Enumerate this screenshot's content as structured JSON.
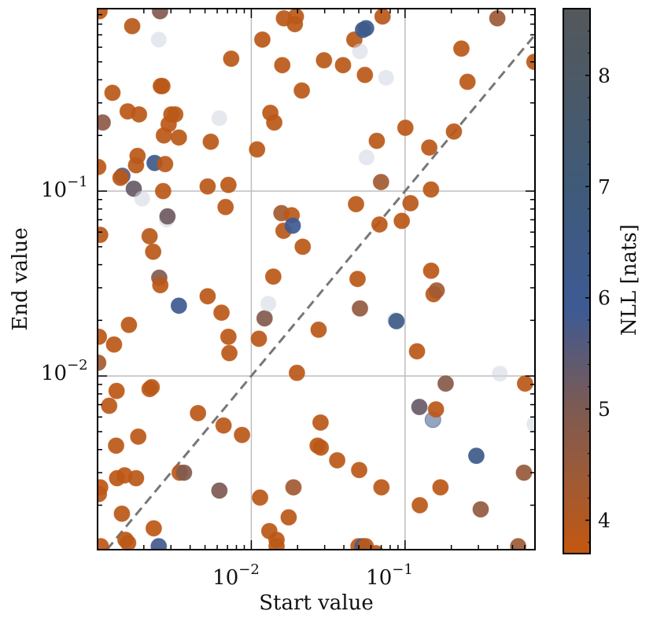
{
  "chart_data": {
    "type": "scatter",
    "xlabel": "Start value",
    "ylabel": "End value",
    "xscale": "log",
    "yscale": "log",
    "xlim": [
      0.001,
      0.7
    ],
    "ylim": [
      0.00115,
      0.97
    ],
    "x_ticks": [
      {
        "value": 0.01,
        "base": "10",
        "exp": "−2"
      },
      {
        "value": 0.1,
        "base": "10",
        "exp": "−1"
      }
    ],
    "y_ticks": [
      {
        "value": 0.01,
        "base": "10",
        "exp": "−2"
      },
      {
        "value": 0.1,
        "base": "10",
        "exp": "−1"
      }
    ],
    "grid": true,
    "reference_line": {
      "label": "y = x",
      "style": "dashed",
      "color": "#777777"
    },
    "colorbar": {
      "label": "NLL [nats]",
      "range": [
        3.7,
        8.6
      ],
      "ticks": [
        4,
        5,
        6,
        7,
        8
      ],
      "colors": [
        {
          "value": 3.7,
          "color": "#c4570f"
        },
        {
          "value": 4.4,
          "color": "#9c5a37"
        },
        {
          "value": 5.0,
          "color": "#7d5a52"
        },
        {
          "value": 5.9,
          "color": "#3d5a94"
        },
        {
          "value": 7.0,
          "color": "#3f5a78"
        },
        {
          "value": 8.6,
          "color": "#54585a"
        }
      ]
    },
    "faint_color": "#cfd6e0",
    "points": [
      {
        "x": 0.00103,
        "y": 0.94,
        "nll": 3.85
      },
      {
        "x": 0.00105,
        "y": 0.0012,
        "nll": 3.8
      },
      {
        "x": 0.00101,
        "y": 0.135,
        "nll": 3.85
      },
      {
        "x": 0.00104,
        "y": 0.058,
        "nll": 3.9
      },
      {
        "x": 0.00102,
        "y": 0.0163,
        "nll": 3.85
      },
      {
        "x": 0.00101,
        "y": 0.0118,
        "nll": 4.3
      },
      {
        "x": 0.00102,
        "y": 0.0023,
        "nll": 3.85
      },
      {
        "x": 0.00104,
        "y": 0.0025,
        "nll": 3.8
      },
      {
        "x": 0.00108,
        "y": 0.235,
        "nll": 4.7
      },
      {
        "x": 0.00125,
        "y": 0.34,
        "nll": 3.85
      },
      {
        "x": 0.00128,
        "y": 0.0148,
        "nll": 3.85
      },
      {
        "x": 0.00133,
        "y": 0.0083,
        "nll": 3.8
      },
      {
        "x": 0.00132,
        "y": 0.0042,
        "nll": 3.85
      },
      {
        "x": 0.00134,
        "y": 0.0028,
        "nll": 3.8
      },
      {
        "x": 0.00119,
        "y": 0.0069,
        "nll": 3.85
      },
      {
        "x": 0.00145,
        "y": 0.121,
        "nll": 5.5
      },
      {
        "x": 0.00141,
        "y": 0.118,
        "nll": 3.85
      },
      {
        "x": 0.0015,
        "y": 0.0029,
        "nll": 3.8
      },
      {
        "x": 0.00144,
        "y": 0.0018,
        "nll": 3.85
      },
      {
        "x": 0.00152,
        "y": 0.0013,
        "nll": 3.85
      },
      {
        "x": 0.00157,
        "y": 0.27,
        "nll": 3.85
      },
      {
        "x": 0.0016,
        "y": 0.0189,
        "nll": 3.85
      },
      {
        "x": 0.00158,
        "y": 0.00125,
        "nll": 3.85
      },
      {
        "x": 0.00168,
        "y": 0.78,
        "nll": 3.9
      },
      {
        "x": 0.00172,
        "y": 0.103,
        "nll": 5.3
      },
      {
        "x": 0.00178,
        "y": 0.138,
        "nll": 3.9
      },
      {
        "x": 0.00182,
        "y": 0.155,
        "nll": 3.85
      },
      {
        "x": 0.00184,
        "y": 0.0047,
        "nll": 3.85
      },
      {
        "x": 0.00178,
        "y": 0.0028,
        "nll": 3.85
      },
      {
        "x": 0.00186,
        "y": 0.26,
        "nll": 3.85
      },
      {
        "x": 0.00195,
        "y": 0.091,
        "faint": true
      },
      {
        "x": 0.00218,
        "y": 0.057,
        "nll": 3.9
      },
      {
        "x": 0.00218,
        "y": 0.0085,
        "nll": 3.85
      },
      {
        "x": 0.00225,
        "y": 0.0087,
        "nll": 3.85
      },
      {
        "x": 0.0023,
        "y": 0.047,
        "nll": 3.85
      },
      {
        "x": 0.00232,
        "y": 0.0015,
        "nll": 3.8
      },
      {
        "x": 0.00235,
        "y": 0.142,
        "nll": 6.3
      },
      {
        "x": 0.0025,
        "y": 0.66,
        "faint": true
      },
      {
        "x": 0.0025,
        "y": 0.0012,
        "nll": 5.8
      },
      {
        "x": 0.00252,
        "y": 0.034,
        "nll": 4.9
      },
      {
        "x": 0.00256,
        "y": 0.031,
        "nll": 3.85
      },
      {
        "x": 0.00255,
        "y": 0.94,
        "nll": 4.9
      },
      {
        "x": 0.00258,
        "y": 0.37,
        "nll": 3.85
      },
      {
        "x": 0.00264,
        "y": 0.37,
        "nll": 3.85
      },
      {
        "x": 0.00267,
        "y": 0.1,
        "nll": 3.85
      },
      {
        "x": 0.0027,
        "y": 0.2,
        "nll": 3.85
      },
      {
        "x": 0.00275,
        "y": 0.14,
        "nll": 3.85
      },
      {
        "x": 0.00282,
        "y": 0.07,
        "faint": true
      },
      {
        "x": 0.00285,
        "y": 0.073,
        "nll": 5.2
      },
      {
        "x": 0.0029,
        "y": 0.23,
        "nll": 3.85
      },
      {
        "x": 0.00302,
        "y": 0.26,
        "nll": 3.85
      },
      {
        "x": 0.0032,
        "y": 0.26,
        "nll": 3.85
      },
      {
        "x": 0.00338,
        "y": 0.024,
        "nll": 6.0
      },
      {
        "x": 0.00338,
        "y": 0.195,
        "nll": 3.85
      },
      {
        "x": 0.00342,
        "y": 0.003,
        "nll": 3.85
      },
      {
        "x": 0.00365,
        "y": 0.003,
        "nll": 4.9
      },
      {
        "x": 0.0045,
        "y": 0.0063,
        "nll": 3.85
      },
      {
        "x": 0.0052,
        "y": 0.106,
        "nll": 3.85
      },
      {
        "x": 0.0052,
        "y": 0.027,
        "nll": 3.85
      },
      {
        "x": 0.00545,
        "y": 0.185,
        "nll": 3.85
      },
      {
        "x": 0.0062,
        "y": 0.248,
        "faint": true
      },
      {
        "x": 0.0062,
        "y": 0.0024,
        "nll": 5.0
      },
      {
        "x": 0.0064,
        "y": 0.022,
        "nll": 3.85
      },
      {
        "x": 0.0066,
        "y": 0.0054,
        "nll": 3.85
      },
      {
        "x": 0.0068,
        "y": 0.082,
        "nll": 3.85
      },
      {
        "x": 0.0071,
        "y": 0.0163,
        "nll": 3.85
      },
      {
        "x": 0.0072,
        "y": 0.0133,
        "nll": 3.85
      },
      {
        "x": 0.0071,
        "y": 0.108,
        "nll": 3.85
      },
      {
        "x": 0.0074,
        "y": 0.52,
        "nll": 3.85
      },
      {
        "x": 0.0087,
        "y": 0.0048,
        "nll": 3.85
      },
      {
        "x": 0.0109,
        "y": 0.168,
        "nll": 3.85
      },
      {
        "x": 0.0112,
        "y": 0.0159,
        "nll": 3.85
      },
      {
        "x": 0.0114,
        "y": 0.0022,
        "nll": 3.85
      },
      {
        "x": 0.0118,
        "y": 0.66,
        "nll": 3.85
      },
      {
        "x": 0.0122,
        "y": 0.0205,
        "nll": 4.9
      },
      {
        "x": 0.0129,
        "y": 0.0246,
        "faint": true
      },
      {
        "x": 0.0131,
        "y": 0.00145,
        "nll": 3.85
      },
      {
        "x": 0.0133,
        "y": 0.265,
        "nll": 3.85
      },
      {
        "x": 0.0139,
        "y": 0.0345,
        "nll": 3.85
      },
      {
        "x": 0.0141,
        "y": 0.235,
        "nll": 3.85
      },
      {
        "x": 0.0146,
        "y": 0.0012,
        "nll": 3.85
      },
      {
        "x": 0.0146,
        "y": 0.0013,
        "nll": 3.85
      },
      {
        "x": 0.0157,
        "y": 0.076,
        "nll": 4.3
      },
      {
        "x": 0.0159,
        "y": 0.48,
        "nll": 3.85
      },
      {
        "x": 0.0162,
        "y": 0.061,
        "nll": 3.85
      },
      {
        "x": 0.0163,
        "y": 0.86,
        "nll": 3.85
      },
      {
        "x": 0.0175,
        "y": 0.00172,
        "nll": 3.85
      },
      {
        "x": 0.0183,
        "y": 0.074,
        "nll": 3.85
      },
      {
        "x": 0.0186,
        "y": 0.065,
        "nll": 5.9
      },
      {
        "x": 0.0188,
        "y": 0.0025,
        "nll": 4.3
      },
      {
        "x": 0.0192,
        "y": 0.8,
        "nll": 3.85
      },
      {
        "x": 0.0195,
        "y": 0.88,
        "nll": 3.85
      },
      {
        "x": 0.0198,
        "y": 0.0104,
        "nll": 3.85
      },
      {
        "x": 0.0213,
        "y": 0.35,
        "nll": 3.85
      },
      {
        "x": 0.0216,
        "y": 0.05,
        "nll": 3.85
      },
      {
        "x": 0.027,
        "y": 0.0042,
        "nll": 3.85
      },
      {
        "x": 0.0274,
        "y": 0.0178,
        "nll": 3.85
      },
      {
        "x": 0.0282,
        "y": 0.0056,
        "nll": 3.85
      },
      {
        "x": 0.0283,
        "y": 0.0041,
        "nll": 3.85
      },
      {
        "x": 0.0297,
        "y": 0.51,
        "nll": 3.85
      },
      {
        "x": 0.0362,
        "y": 0.0035,
        "nll": 3.85
      },
      {
        "x": 0.0395,
        "y": 0.48,
        "nll": 3.85
      },
      {
        "x": 0.0468,
        "y": 0.66,
        "nll": 3.85
      },
      {
        "x": 0.048,
        "y": 0.085,
        "nll": 3.85
      },
      {
        "x": 0.0491,
        "y": 0.0335,
        "nll": 3.85
      },
      {
        "x": 0.0498,
        "y": 0.0012,
        "nll": 3.8
      },
      {
        "x": 0.0503,
        "y": 0.0031,
        "nll": 3.85
      },
      {
        "x": 0.0509,
        "y": 0.0232,
        "nll": 4.6
      },
      {
        "x": 0.0509,
        "y": 0.57,
        "faint": true
      },
      {
        "x": 0.0529,
        "y": 0.0012,
        "nll": 5.7
      },
      {
        "x": 0.0533,
        "y": 0.745,
        "nll": 6.3
      },
      {
        "x": 0.0548,
        "y": 0.425,
        "nll": 3.85
      },
      {
        "x": 0.0555,
        "y": 0.0012,
        "nll": 3.85
      },
      {
        "x": 0.0558,
        "y": 0.76,
        "nll": 6.3
      },
      {
        "x": 0.0562,
        "y": 0.152,
        "faint": true
      },
      {
        "x": 0.0645,
        "y": 0.0011,
        "nll": 3.85
      },
      {
        "x": 0.0655,
        "y": 0.187,
        "nll": 3.85
      },
      {
        "x": 0.0682,
        "y": 0.066,
        "nll": 3.85
      },
      {
        "x": 0.0698,
        "y": 0.112,
        "nll": 4.3
      },
      {
        "x": 0.0702,
        "y": 0.0025,
        "nll": 3.85
      },
      {
        "x": 0.0714,
        "y": 0.88,
        "nll": 3.9
      },
      {
        "x": 0.0752,
        "y": 0.41,
        "faint": true
      },
      {
        "x": 0.0859,
        "y": 0.0201,
        "faint": true
      },
      {
        "x": 0.0879,
        "y": 0.0198,
        "nll": 6.4
      },
      {
        "x": 0.0952,
        "y": 0.069,
        "nll": 3.85
      },
      {
        "x": 0.1005,
        "y": 0.22,
        "nll": 3.85
      },
      {
        "x": 0.1085,
        "y": 0.086,
        "nll": 3.9
      },
      {
        "x": 0.1196,
        "y": 0.0136,
        "nll": 3.85
      },
      {
        "x": 0.1239,
        "y": 0.0068,
        "nll": 5.3
      },
      {
        "x": 0.1247,
        "y": 0.002,
        "nll": 3.85
      },
      {
        "x": 0.1437,
        "y": 0.172,
        "nll": 3.85
      },
      {
        "x": 0.1475,
        "y": 0.102,
        "nll": 3.85
      },
      {
        "x": 0.1478,
        "y": 0.0371,
        "nll": 3.85
      },
      {
        "x": 0.1518,
        "y": 0.0058,
        "nll": 6.2,
        "light": true
      },
      {
        "x": 0.1533,
        "y": 0.0277,
        "nll": 3.85
      },
      {
        "x": 0.1589,
        "y": 0.0066,
        "nll": 3.85
      },
      {
        "x": 0.1606,
        "y": 0.029,
        "nll": 4.3
      },
      {
        "x": 0.1699,
        "y": 0.0025,
        "nll": 3.85
      },
      {
        "x": 0.1837,
        "y": 0.0091,
        "nll": 4.8
      },
      {
        "x": 0.2079,
        "y": 0.21,
        "nll": 3.85
      },
      {
        "x": 0.2325,
        "y": 0.59,
        "nll": 3.85
      },
      {
        "x": 0.2548,
        "y": 0.39,
        "nll": 3.85
      },
      {
        "x": 0.2908,
        "y": 0.0037,
        "nll": 6.3
      },
      {
        "x": 0.3104,
        "y": 0.0019,
        "nll": 4.6
      },
      {
        "x": 0.3983,
        "y": 0.86,
        "nll": 4.4
      },
      {
        "x": 0.4137,
        "y": 0.0103,
        "faint": true
      },
      {
        "x": 0.5442,
        "y": 0.0012,
        "nll": 4.4
      },
      {
        "x": 0.5932,
        "y": 0.003,
        "nll": 4.5
      },
      {
        "x": 0.6034,
        "y": 0.0091,
        "nll": 3.85
      },
      {
        "x": 0.6937,
        "y": 0.5,
        "nll": 3.85
      },
      {
        "x": 0.6938,
        "y": 0.0055,
        "faint": true
      }
    ]
  }
}
